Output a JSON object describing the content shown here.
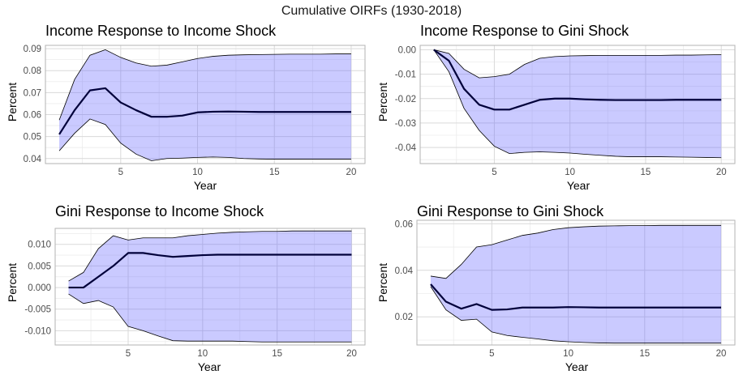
{
  "figure": {
    "title": "Cumulative OIRFs (1930-2018)",
    "band_fill": "#6666ff",
    "band_opacity": 0.35,
    "band_edge": "#000000",
    "line_color": "#00003a",
    "panel_border": "#b3b3b3",
    "grid_major": "#d9d9d9",
    "grid_minor": "#ececec"
  },
  "chart_data": [
    {
      "type": "area",
      "title": "Income Response to Income Shock",
      "xlabel": "Year",
      "ylabel": "Percent",
      "xlim": [
        0.1,
        20.9
      ],
      "ylim": [
        0.0377,
        0.0915
      ],
      "xticks": [
        5,
        10,
        15,
        20
      ],
      "xtick_labels": [
        "5",
        "10",
        "15",
        "20"
      ],
      "yticks": [
        0.04,
        0.05,
        0.06,
        0.07,
        0.08,
        0.09
      ],
      "ytick_labels": [
        "0.04",
        "0.05",
        "0.06",
        "0.07",
        "0.08",
        "0.09"
      ],
      "x": [
        1,
        2,
        3,
        4,
        5,
        6,
        7,
        8,
        9,
        10,
        11,
        12,
        13,
        14,
        15,
        16,
        17,
        18,
        19,
        20
      ],
      "series": [
        {
          "role": "upper",
          "values": [
            0.0575,
            0.076,
            0.087,
            0.0895,
            0.086,
            0.0835,
            0.082,
            0.0825,
            0.084,
            0.0855,
            0.0865,
            0.087,
            0.0872,
            0.0873,
            0.0874,
            0.0875,
            0.0875,
            0.0875,
            0.0876,
            0.0876
          ]
        },
        {
          "role": "response",
          "values": [
            0.051,
            0.062,
            0.071,
            0.072,
            0.0655,
            0.062,
            0.059,
            0.059,
            0.0595,
            0.061,
            0.0613,
            0.0614,
            0.0613,
            0.0612,
            0.0612,
            0.0612,
            0.0612,
            0.0612,
            0.0612,
            0.0612
          ]
        },
        {
          "role": "lower",
          "values": [
            0.0435,
            0.0515,
            0.058,
            0.0555,
            0.047,
            0.042,
            0.039,
            0.04,
            0.0402,
            0.0405,
            0.0407,
            0.0405,
            0.04,
            0.0398,
            0.0397,
            0.0397,
            0.0397,
            0.0397,
            0.0397,
            0.0397
          ]
        }
      ]
    },
    {
      "type": "area",
      "title": "Income Response to Gini Shock",
      "xlabel": "Year",
      "ylabel": "Percent",
      "xlim": [
        0.1,
        20.9
      ],
      "ylim": [
        -0.0466,
        0.0018
      ],
      "xticks": [
        5,
        10,
        15,
        20
      ],
      "xtick_labels": [
        "5",
        "10",
        "15",
        "20"
      ],
      "yticks": [
        -0.04,
        -0.03,
        -0.02,
        -0.01,
        0.0
      ],
      "ytick_labels": [
        "-0.04",
        "-0.03",
        "-0.02",
        "-0.01",
        "0.00"
      ],
      "x": [
        1,
        2,
        3,
        4,
        5,
        6,
        7,
        8,
        9,
        10,
        11,
        12,
        13,
        14,
        15,
        16,
        17,
        18,
        19,
        20
      ],
      "series": [
        {
          "role": "upper",
          "values": [
            0.0,
            -0.0015,
            -0.008,
            -0.0115,
            -0.011,
            -0.01,
            -0.006,
            -0.0035,
            -0.0028,
            -0.0025,
            -0.0024,
            -0.0023,
            -0.0023,
            -0.0023,
            -0.0023,
            -0.0023,
            -0.0022,
            -0.0022,
            -0.0021,
            -0.002
          ]
        },
        {
          "role": "response",
          "values": [
            0.0,
            -0.0045,
            -0.016,
            -0.0225,
            -0.0245,
            -0.0245,
            -0.0225,
            -0.0205,
            -0.02,
            -0.02,
            -0.0203,
            -0.0205,
            -0.0206,
            -0.0206,
            -0.0206,
            -0.0206,
            -0.0205,
            -0.0205,
            -0.0205,
            -0.0205
          ]
        },
        {
          "role": "lower",
          "values": [
            0.0,
            -0.009,
            -0.024,
            -0.033,
            -0.0395,
            -0.0425,
            -0.042,
            -0.0418,
            -0.042,
            -0.0423,
            -0.0428,
            -0.0432,
            -0.0436,
            -0.0438,
            -0.0438,
            -0.0438,
            -0.0439,
            -0.044,
            -0.0441,
            -0.0442
          ]
        }
      ]
    },
    {
      "type": "area",
      "title": "Gini Response to Income Shock",
      "xlabel": "Year",
      "ylabel": "Percent",
      "xlim": [
        0.1,
        20.9
      ],
      "ylim": [
        -0.0133,
        0.0137
      ],
      "xticks": [
        5,
        10,
        15,
        20
      ],
      "xtick_labels": [
        "5",
        "10",
        "15",
        "20"
      ],
      "yticks": [
        -0.01,
        -0.005,
        0.0,
        0.005,
        0.01
      ],
      "ytick_labels": [
        "-0.010",
        "-0.005",
        "0.000",
        "0.005",
        "0.010"
      ],
      "x": [
        1,
        2,
        3,
        4,
        5,
        6,
        7,
        8,
        9,
        10,
        11,
        12,
        13,
        14,
        15,
        16,
        17,
        18,
        19,
        20
      ],
      "series": [
        {
          "role": "upper",
          "values": [
            0.0015,
            0.0035,
            0.009,
            0.012,
            0.011,
            0.0115,
            0.0115,
            0.0115,
            0.012,
            0.0123,
            0.0126,
            0.0128,
            0.0129,
            0.013,
            0.013,
            0.0131,
            0.0131,
            0.0131,
            0.0131,
            0.0131
          ]
        },
        {
          "role": "response",
          "values": [
            0.0,
            0.0,
            0.0025,
            0.005,
            0.008,
            0.008,
            0.0075,
            0.0071,
            0.0073,
            0.0075,
            0.0076,
            0.0076,
            0.0076,
            0.0076,
            0.0076,
            0.0076,
            0.0076,
            0.0076,
            0.0076,
            0.0076
          ]
        },
        {
          "role": "lower",
          "values": [
            -0.0015,
            -0.0037,
            -0.003,
            -0.0045,
            -0.009,
            -0.01,
            -0.0112,
            -0.0123,
            -0.0124,
            -0.0124,
            -0.0124,
            -0.0124,
            -0.0125,
            -0.0126,
            -0.0126,
            -0.0126,
            -0.0126,
            -0.0126,
            -0.0126,
            -0.0126
          ]
        }
      ]
    },
    {
      "type": "area",
      "title": "Gini Response to Gini Shock",
      "xlabel": "Year",
      "ylabel": "Percent",
      "xlim": [
        0.1,
        20.9
      ],
      "ylim": [
        0.0079,
        0.0615
      ],
      "xticks": [
        5,
        10,
        15,
        20
      ],
      "xtick_labels": [
        "5",
        "10",
        "15",
        "20"
      ],
      "yticks": [
        0.02,
        0.04,
        0.06
      ],
      "ytick_labels": [
        "0.02",
        "0.04",
        "0.06"
      ],
      "x": [
        1,
        2,
        3,
        4,
        5,
        6,
        7,
        8,
        9,
        10,
        11,
        12,
        13,
        14,
        15,
        16,
        17,
        18,
        19,
        20
      ],
      "series": [
        {
          "role": "upper",
          "values": [
            0.0375,
            0.0365,
            0.0425,
            0.05,
            0.051,
            0.053,
            0.055,
            0.056,
            0.0575,
            0.0583,
            0.0587,
            0.059,
            0.0591,
            0.0592,
            0.0592,
            0.0593,
            0.0593,
            0.0593,
            0.0593,
            0.0593
          ]
        },
        {
          "role": "response",
          "values": [
            0.034,
            0.0265,
            0.0235,
            0.0255,
            0.023,
            0.0232,
            0.024,
            0.024,
            0.024,
            0.0242,
            0.0241,
            0.024,
            0.024,
            0.024,
            0.024,
            0.024,
            0.024,
            0.024,
            0.024,
            0.024
          ]
        },
        {
          "role": "lower",
          "values": [
            0.033,
            0.023,
            0.0185,
            0.019,
            0.0135,
            0.012,
            0.0112,
            0.0105,
            0.0097,
            0.0093,
            0.009,
            0.0088,
            0.0087,
            0.0087,
            0.0087,
            0.0087,
            0.0087,
            0.0087,
            0.0087,
            0.0087
          ]
        }
      ]
    }
  ]
}
